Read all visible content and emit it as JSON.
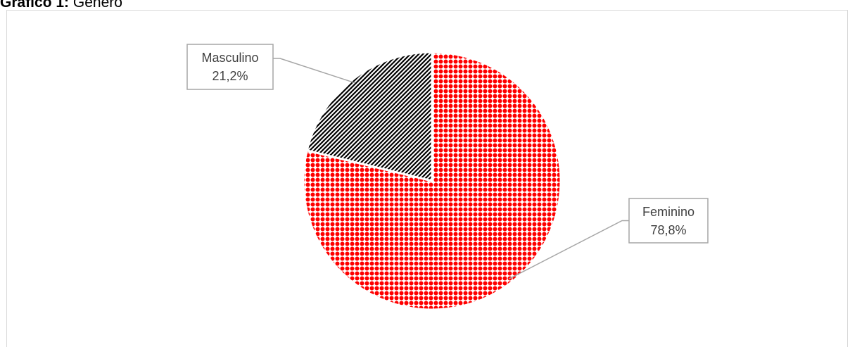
{
  "caption": {
    "label": "Gráfico 1:",
    "title": "Gênero"
  },
  "chart_data": {
    "type": "pie",
    "slices": [
      {
        "label": "Feminino",
        "value": 78.8,
        "display": "78,8%",
        "color": "#ff0000",
        "pattern": "dots"
      },
      {
        "label": "Masculino",
        "value": 21.2,
        "display": "21,2%",
        "color": "#000000",
        "pattern": "diagonal-weave"
      }
    ],
    "start_angle_deg": 0,
    "direction": "clockwise",
    "legend": "none",
    "data_labels": "outside-with-leader-lines"
  }
}
